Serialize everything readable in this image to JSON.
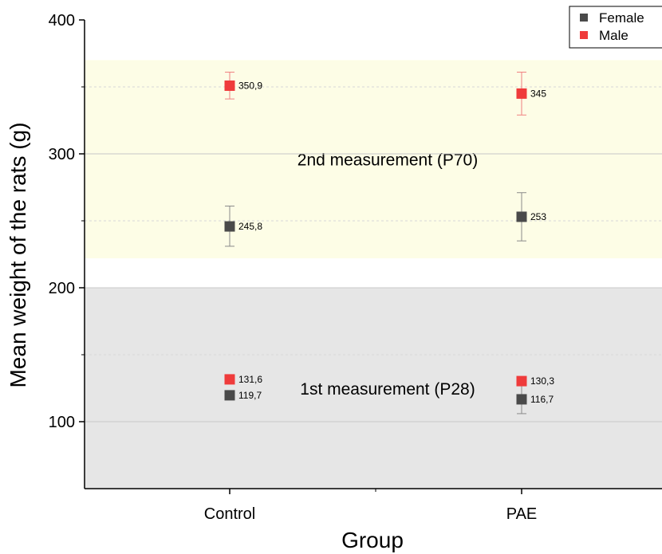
{
  "chart_data": {
    "type": "scatter",
    "xlabel": "Group",
    "ylabel": "Mean weight of the rats (g)",
    "categories": [
      "Control",
      "PAE"
    ],
    "ylim": [
      50,
      400
    ],
    "yticks": [
      100,
      200,
      300,
      400
    ],
    "grid": true,
    "legend_position": "top-right",
    "bands": [
      {
        "label": "1st measurement (P28)",
        "y_from": 50,
        "y_to": 200,
        "color": "#e6e6e6"
      },
      {
        "label": "2nd measurement (P70)",
        "y_from": 222,
        "y_to": 370,
        "color": "#fdfde6"
      }
    ],
    "series": [
      {
        "name": "Female",
        "color": "#4a4a4a",
        "points": [
          {
            "category": "Control",
            "y": 119.7,
            "label": "119,7",
            "err_low": 117,
            "err_high": 122
          },
          {
            "category": "PAE",
            "y": 116.7,
            "label": "116,7",
            "err_low": 106,
            "err_high": 127
          },
          {
            "category": "Control",
            "y": 245.8,
            "label": "245,8",
            "err_low": 231,
            "err_high": 261
          },
          {
            "category": "PAE",
            "y": 253,
            "label": "253",
            "err_low": 235,
            "err_high": 271
          }
        ]
      },
      {
        "name": "Male",
        "color": "#ef3b3b",
        "points": [
          {
            "category": "Control",
            "y": 131.6,
            "label": "131,6",
            "err_low": 130,
            "err_high": 133
          },
          {
            "category": "PAE",
            "y": 130.3,
            "label": "130,3",
            "err_low": 128,
            "err_high": 132
          },
          {
            "category": "Control",
            "y": 350.9,
            "label": "350,9",
            "err_low": 341,
            "err_high": 361
          },
          {
            "category": "PAE",
            "y": 345,
            "label": "345",
            "err_low": 329,
            "err_high": 361
          }
        ]
      }
    ]
  }
}
